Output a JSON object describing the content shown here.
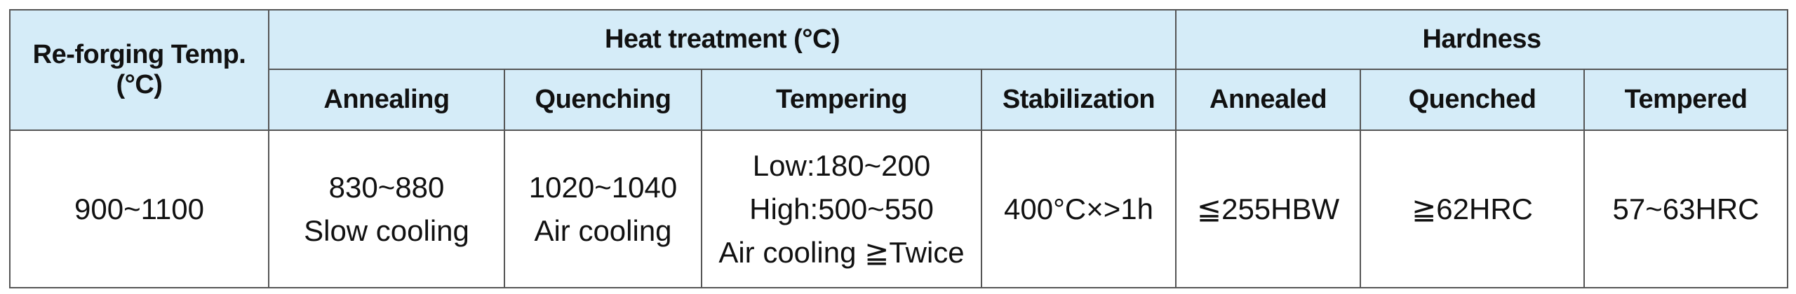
{
  "table": {
    "corner": [
      "Re-forging Temp.",
      "(°C)"
    ],
    "groups": [
      {
        "label": "Heat treatment (°C)",
        "columns": [
          "Annealing",
          "Quenching",
          "Tempering",
          "Stabilization"
        ]
      },
      {
        "label": "Hardness",
        "columns": [
          "Annealed",
          "Quenched",
          "Tempered"
        ]
      }
    ],
    "row": [
      [
        "900~1100"
      ],
      [
        "830~880",
        "Slow cooling"
      ],
      [
        "1020~1040",
        "Air cooling"
      ],
      [
        "Low:180~200",
        "High:500~550",
        "Air cooling ≧Twice"
      ],
      [
        "400°C×>1h"
      ],
      [
        "≦255HBW"
      ],
      [
        "≧62HRC"
      ],
      [
        "57~63HRC"
      ]
    ]
  }
}
